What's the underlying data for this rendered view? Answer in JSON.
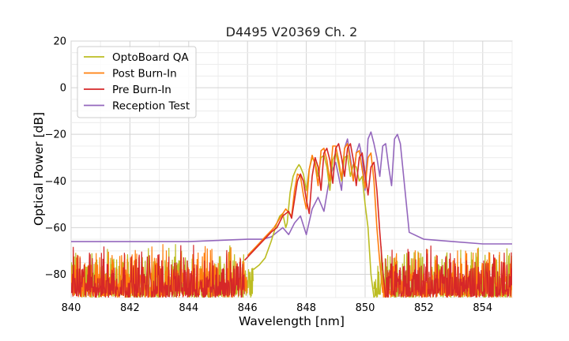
{
  "chart_data": {
    "type": "line",
    "title": "D4495 V20369 Ch. 2",
    "xlabel": "Wavelength [nm]",
    "ylabel": "Optical Power [dB]",
    "xlim": [
      840,
      855
    ],
    "ylim": [
      -90,
      20
    ],
    "xticks": [
      840,
      842,
      844,
      846,
      848,
      850,
      852,
      854
    ],
    "yticks": [
      20,
      0,
      -20,
      -40,
      -60,
      -80
    ],
    "ytick_labels": [
      "20",
      "0",
      "−20",
      "−40",
      "−60",
      "−80"
    ],
    "grid": true,
    "legend_position": "top-left",
    "series": [
      {
        "name": "OptoBoard QA",
        "color": "#bcbd22",
        "noise_floor_x": [
          [
            840,
            846.2
          ],
          [
            850.3,
            855
          ]
        ],
        "x": [
          846.2,
          846.4,
          846.6,
          846.8,
          847.0,
          847.1,
          847.2,
          847.3,
          847.35,
          847.45,
          847.55,
          847.65,
          847.75,
          847.8,
          847.9,
          848.0,
          848.1,
          848.2,
          848.3,
          848.4,
          848.5,
          848.6,
          848.7,
          848.8,
          848.9,
          849.0,
          849.1,
          849.2,
          849.3,
          849.4,
          849.5,
          849.6,
          849.7,
          849.8,
          849.9,
          850.0,
          850.1,
          850.2,
          850.3
        ],
        "y": [
          -78,
          -76,
          -73,
          -66,
          -58,
          -55,
          -54,
          -60,
          -58,
          -45,
          -38,
          -35,
          -33,
          -34,
          -37,
          -44,
          -35,
          -30,
          -32,
          -38,
          -30,
          -29,
          -34,
          -44,
          -31,
          -28,
          -33,
          -40,
          -30,
          -29,
          -38,
          -33,
          -34,
          -40,
          -38,
          -50,
          -60,
          -80,
          -90
        ]
      },
      {
        "name": "Post Burn-In",
        "color": "#ff7f0e",
        "noise_floor_x": [
          [
            840,
            846.0
          ],
          [
            850.6,
            855
          ]
        ],
        "x": [
          846.0,
          846.3,
          846.6,
          846.9,
          847.1,
          847.3,
          847.5,
          847.6,
          847.7,
          847.8,
          847.9,
          848.0,
          848.1,
          848.2,
          848.3,
          848.4,
          848.5,
          848.6,
          848.7,
          848.8,
          848.9,
          849.0,
          849.1,
          849.2,
          849.3,
          849.4,
          849.5,
          849.6,
          849.7,
          849.8,
          849.9,
          850.0,
          850.1,
          850.2,
          850.3,
          850.4,
          850.5,
          850.6
        ],
        "y": [
          -72,
          -68,
          -64,
          -60,
          -56,
          -52,
          -55,
          -44,
          -37,
          -38,
          -46,
          -52,
          -35,
          -29,
          -33,
          -42,
          -27,
          -26,
          -31,
          -40,
          -25,
          -25,
          -31,
          -39,
          -26,
          -24,
          -32,
          -40,
          -28,
          -27,
          -35,
          -43,
          -30,
          -28,
          -40,
          -60,
          -75,
          -88
        ]
      },
      {
        "name": "Pre Burn-In",
        "color": "#d62728",
        "noise_floor_x": [
          [
            840,
            845.9
          ],
          [
            850.7,
            855
          ]
        ],
        "x": [
          845.9,
          846.2,
          846.5,
          846.8,
          847.0,
          847.2,
          847.4,
          847.5,
          847.6,
          847.7,
          847.8,
          847.9,
          848.0,
          848.1,
          848.2,
          848.3,
          848.4,
          848.5,
          848.6,
          848.7,
          848.8,
          848.9,
          849.0,
          849.1,
          849.2,
          849.3,
          849.4,
          849.5,
          849.6,
          849.7,
          849.8,
          849.9,
          850.0,
          850.1,
          850.2,
          850.3,
          850.4,
          850.5,
          850.6,
          850.7
        ],
        "y": [
          -74,
          -70,
          -66,
          -62,
          -60,
          -55,
          -53,
          -56,
          -48,
          -40,
          -37,
          -40,
          -48,
          -54,
          -38,
          -30,
          -34,
          -44,
          -28,
          -26,
          -31,
          -41,
          -26,
          -24,
          -30,
          -38,
          -26,
          -24,
          -31,
          -42,
          -30,
          -28,
          -37,
          -46,
          -34,
          -32,
          -44,
          -62,
          -78,
          -90
        ]
      },
      {
        "name": "Reception Test",
        "color": "#9467bd",
        "x": [
          840,
          842,
          844,
          845,
          846,
          846.5,
          846.8,
          847.0,
          847.2,
          847.4,
          847.6,
          847.8,
          848.0,
          848.2,
          848.4,
          848.6,
          848.8,
          849.0,
          849.2,
          849.3,
          849.4,
          849.5,
          849.6,
          849.7,
          849.8,
          849.9,
          850.0,
          850.1,
          850.2,
          850.3,
          850.4,
          850.5,
          850.6,
          850.7,
          850.8,
          850.9,
          851.0,
          851.1,
          851.2,
          851.5,
          852,
          853,
          854,
          855
        ],
        "y": [
          -66,
          -66,
          -66,
          -65.5,
          -65,
          -65,
          -64,
          -62,
          -60,
          -63,
          -58,
          -55,
          -63,
          -52,
          -47,
          -53,
          -38,
          -32,
          -44,
          -26,
          -22,
          -30,
          -40,
          -28,
          -24,
          -30,
          -44,
          -22,
          -19,
          -24,
          -30,
          -38,
          -25,
          -24,
          -34,
          -42,
          -22,
          -20,
          -24,
          -62,
          -65,
          -66,
          -67,
          -67
        ]
      }
    ]
  }
}
